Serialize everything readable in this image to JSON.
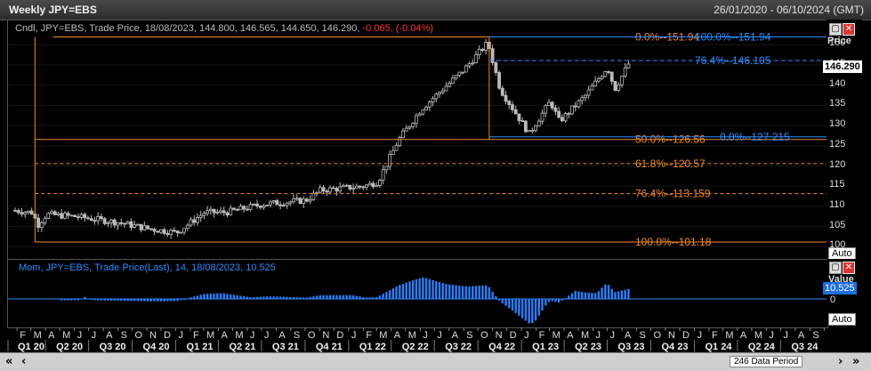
{
  "window": {
    "title": "Weekly JPY=EBS",
    "date_range": "26/01/2020 - 06/10/2024 (GMT)"
  },
  "price_panel": {
    "legend_prefix": "Cndl, JPY=EBS, Trade Price, 18/08/2023, 144.800, 146.565, 144.650, 146.290,",
    "legend_change": "-0.065, (-0.04%)",
    "axis_title": "Price",
    "axis_ticks": [
      "150",
      "145",
      "140",
      "135",
      "130",
      "125",
      "120",
      "115",
      "110",
      "105",
      "100"
    ],
    "last_price": "146.290",
    "auto_label": "Auto"
  },
  "mom_panel": {
    "legend": "Mom, JPY=EBS, Trade Price(Last),  14,  18/08/2023, 10.525",
    "axis_title": "Value",
    "axis_zero": "0",
    "last_value": "10.525",
    "auto_label": "Auto"
  },
  "fib_left": [
    {
      "pct": "0.0%",
      "value": "151.94"
    },
    {
      "pct": "50.0%",
      "value": "126.56"
    },
    {
      "pct": "61.8%",
      "value": "120.57"
    },
    {
      "pct": "76.4%",
      "value": "113.159"
    },
    {
      "pct": "100.0%",
      "value": "101.18"
    }
  ],
  "fib_right": [
    {
      "pct": "100.0%",
      "value": "151.94"
    },
    {
      "pct": "76.4%",
      "value": "146.105"
    },
    {
      "pct": "0.0%",
      "value": "127.215"
    }
  ],
  "colors": {
    "fib_left": "#f08a24",
    "fib_right": "#2a8cff",
    "momentum": "#2a7fff",
    "candle": "#bbbbbb",
    "negative": "#ff3333"
  },
  "x_axis": {
    "months": [
      "F",
      "M",
      "A",
      "M",
      "J",
      "J",
      "A",
      "S",
      "O",
      "N",
      "D",
      "J",
      "F",
      "M",
      "A",
      "M",
      "J",
      "J",
      "A",
      "S",
      "O",
      "N",
      "D",
      "J",
      "F",
      "M",
      "A",
      "M",
      "J",
      "J",
      "A",
      "S",
      "O",
      "N",
      "D",
      "J",
      "F",
      "M",
      "A",
      "M",
      "J",
      "J",
      "A",
      "S",
      "O",
      "N",
      "D",
      "J",
      "F",
      "M",
      "A",
      "M",
      "J",
      "J",
      "A",
      "S",
      "O",
      "N",
      "D",
      "J",
      "F",
      "M",
      "A",
      "M",
      "J",
      "J",
      "A",
      "S"
    ],
    "quarters": [
      "Q1 20",
      "Q2 20",
      "Q3 20",
      "Q4 20",
      "Q1 21",
      "Q2 21",
      "Q3 21",
      "Q4 21",
      "Q1 22",
      "Q2 22",
      "Q3 22",
      "Q4 22",
      "Q1 23",
      "Q2 23",
      "Q3 23",
      "Q4 23",
      "Q1 24",
      "Q2 24",
      "Q3 24"
    ]
  },
  "footer": {
    "nav_left": "«",
    "nav_left2": "‹",
    "data_period": "246 Data Period",
    "nav_right": "›",
    "nav_right2": "»"
  },
  "chart_data": {
    "type": "candlestick",
    "title": "Weekly JPY=EBS",
    "ylabel": "Price",
    "ylim": [
      97,
      156
    ],
    "x_range": [
      "2020-01-26",
      "2024-10-06"
    ],
    "series_close_anchors": [
      {
        "date": "2020-01-26",
        "close": 109.0
      },
      {
        "date": "2020-03-01",
        "close": 108.5
      },
      {
        "date": "2020-03-15",
        "close": 105.5
      },
      {
        "date": "2020-04-01",
        "close": 108.0
      },
      {
        "date": "2020-06-01",
        "close": 107.5
      },
      {
        "date": "2020-09-01",
        "close": 106.0
      },
      {
        "date": "2020-11-01",
        "close": 104.5
      },
      {
        "date": "2021-01-01",
        "close": 103.5
      },
      {
        "date": "2021-03-01",
        "close": 108.5
      },
      {
        "date": "2021-04-15",
        "close": 108.5
      },
      {
        "date": "2021-07-01",
        "close": 110.5
      },
      {
        "date": "2021-10-01",
        "close": 111.5
      },
      {
        "date": "2021-11-01",
        "close": 114.0
      },
      {
        "date": "2022-02-01",
        "close": 115.0
      },
      {
        "date": "2022-03-01",
        "close": 116.0
      },
      {
        "date": "2022-04-15",
        "close": 126.5
      },
      {
        "date": "2022-06-01",
        "close": 134.0
      },
      {
        "date": "2022-09-01",
        "close": 144.0
      },
      {
        "date": "2022-10-20",
        "close": 150.5
      },
      {
        "date": "2022-11-15",
        "close": 139.0
      },
      {
        "date": "2023-01-15",
        "close": 128.0
      },
      {
        "date": "2023-03-01",
        "close": 136.0
      },
      {
        "date": "2023-03-20",
        "close": 131.0
      },
      {
        "date": "2023-05-15",
        "close": 137.5
      },
      {
        "date": "2023-06-30",
        "close": 144.5
      },
      {
        "date": "2023-07-15",
        "close": 139.0
      },
      {
        "date": "2023-08-18",
        "close": 146.29
      }
    ],
    "last_candle": {
      "date": "2023-08-18",
      "open": 144.8,
      "high": 146.565,
      "low": 144.65,
      "close": 146.29
    },
    "fib_retracement_left": {
      "high": 151.94,
      "low": 101.18,
      "levels": {
        "0.0%": 151.94,
        "50.0%": 126.56,
        "61.8%": 120.57,
        "76.4%": 113.159,
        "100.0%": 101.18
      }
    },
    "fib_retracement_right": {
      "high": 151.94,
      "low": 127.215,
      "levels": {
        "100.0%": 151.94,
        "76.4%": 146.105,
        "0.0%": 127.215
      }
    },
    "momentum": {
      "period": 14,
      "last": 10.525,
      "zero_line": 0
    }
  }
}
